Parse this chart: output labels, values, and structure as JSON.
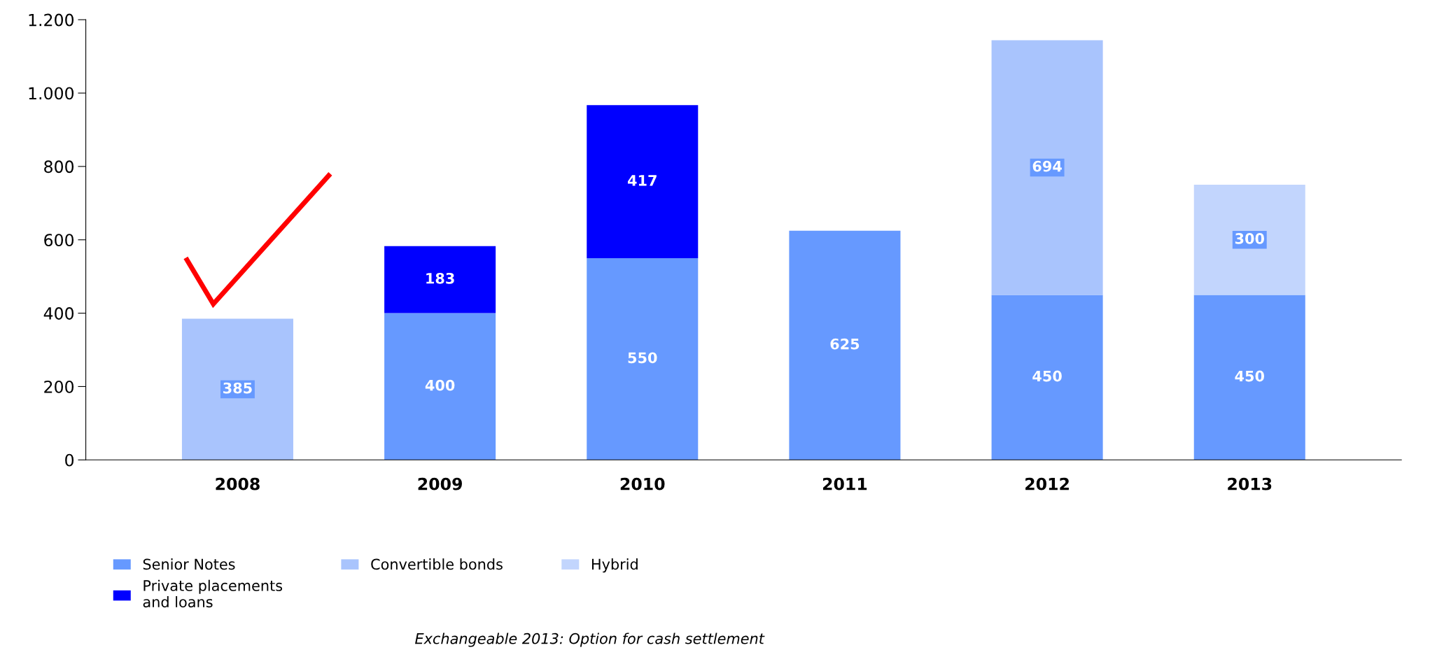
{
  "chart_data": {
    "type": "bar",
    "stacked": true,
    "categories": [
      "2008",
      "2009",
      "2010",
      "2011",
      "2012",
      "2013"
    ],
    "series": [
      {
        "name": "Senior Notes",
        "color": "#6699ff",
        "values": [
          null,
          400,
          550,
          625,
          450,
          450
        ]
      },
      {
        "name": "Private placements\nand loans",
        "color": "#0000ff",
        "values": [
          null,
          183,
          417,
          null,
          null,
          null
        ]
      },
      {
        "name": "Convertible bonds",
        "color": "#a9c4fd",
        "values": [
          385,
          null,
          null,
          null,
          694,
          null
        ]
      },
      {
        "name": "Hybrid",
        "color": "#c2d5fd",
        "values": [
          null,
          null,
          null,
          null,
          null,
          300
        ]
      }
    ],
    "ylim": [
      0,
      1200
    ],
    "yticks": [
      0,
      200,
      400,
      600,
      800,
      {
        "value": 1000,
        "label": "1.000"
      },
      {
        "value": 1200,
        "label": "1.200"
      }
    ],
    "data_labels": true,
    "grid": false,
    "legend": "bottom",
    "annotations": [
      "Exchangeable 2013: Option for cash settlement"
    ]
  }
}
